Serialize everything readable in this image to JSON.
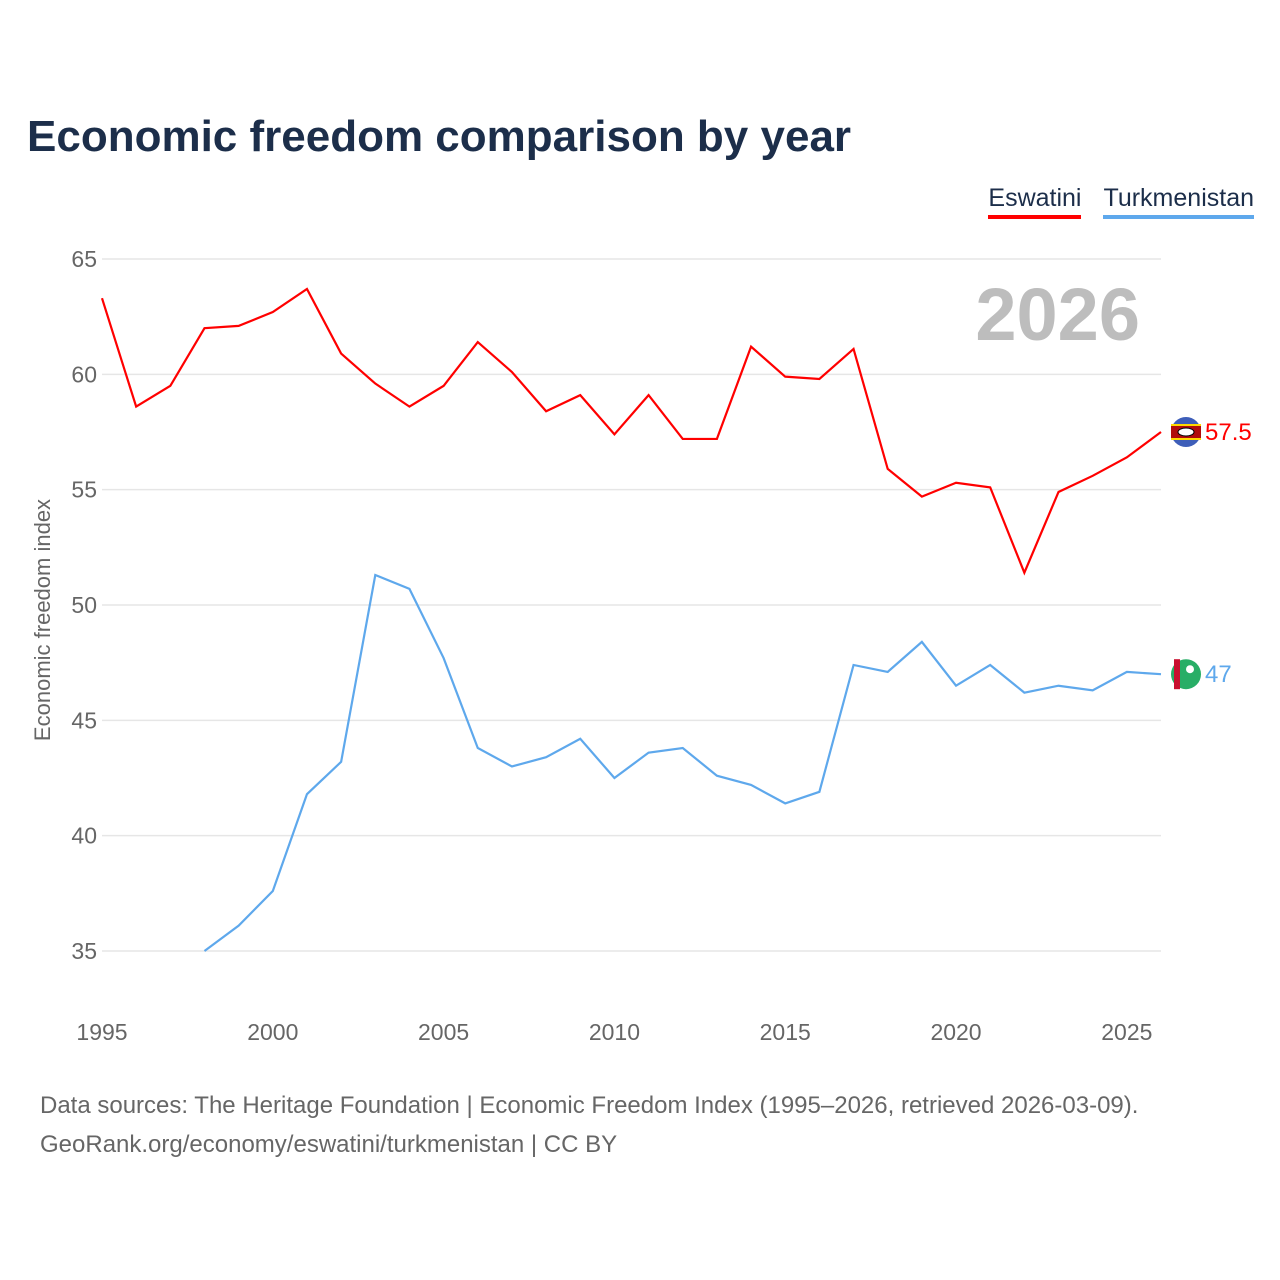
{
  "chart_data": {
    "type": "line",
    "title": "Economic freedom comparison by year",
    "xlabel": "",
    "ylabel": "Economic freedom index",
    "xlim": [
      1995,
      2026
    ],
    "ylim": [
      35,
      65
    ],
    "yticks": [
      35,
      40,
      45,
      50,
      55,
      60,
      65
    ],
    "xticks": [
      1995,
      2000,
      2005,
      2010,
      2015,
      2020,
      2025
    ],
    "grid": true,
    "legend_position": "top-right",
    "year_label": "2026",
    "series": [
      {
        "name": "Eswatini",
        "color": "#ff0000",
        "end_label": "57.5",
        "x": [
          1995,
          1996,
          1997,
          1998,
          1999,
          2000,
          2001,
          2002,
          2003,
          2004,
          2005,
          2006,
          2007,
          2008,
          2009,
          2010,
          2011,
          2012,
          2013,
          2014,
          2015,
          2016,
          2017,
          2018,
          2019,
          2020,
          2021,
          2022,
          2023,
          2024,
          2025,
          2026
        ],
        "values": [
          63.3,
          58.6,
          59.5,
          62.0,
          62.1,
          62.7,
          63.7,
          60.9,
          59.6,
          58.6,
          59.5,
          61.4,
          60.1,
          58.4,
          59.1,
          57.4,
          59.1,
          57.2,
          57.2,
          61.2,
          59.9,
          59.8,
          61.1,
          55.9,
          54.7,
          55.3,
          55.1,
          51.4,
          54.9,
          55.6,
          56.4,
          57.5
        ]
      },
      {
        "name": "Turkmenistan",
        "color": "#5ea8ec",
        "end_label": "47",
        "x": [
          1998,
          1999,
          2000,
          2001,
          2002,
          2003,
          2004,
          2005,
          2006,
          2007,
          2008,
          2009,
          2010,
          2011,
          2012,
          2013,
          2014,
          2015,
          2016,
          2017,
          2018,
          2019,
          2020,
          2021,
          2022,
          2023,
          2024,
          2025,
          2026
        ],
        "values": [
          35.0,
          36.1,
          37.6,
          41.8,
          43.2,
          51.3,
          50.7,
          47.7,
          43.8,
          43.0,
          43.4,
          44.2,
          42.5,
          43.6,
          43.8,
          42.6,
          42.2,
          41.4,
          41.9,
          47.4,
          47.1,
          48.4,
          46.5,
          47.4,
          46.2,
          46.5,
          46.3,
          47.1,
          47.0
        ]
      }
    ]
  },
  "footer": {
    "line1": "Data sources: The Heritage Foundation | Economic Freedom Index (1995–2026, retrieved 2026-03-09).",
    "line2": "GeoRank.org/economy/eswatini/turkmenistan | CC BY"
  }
}
